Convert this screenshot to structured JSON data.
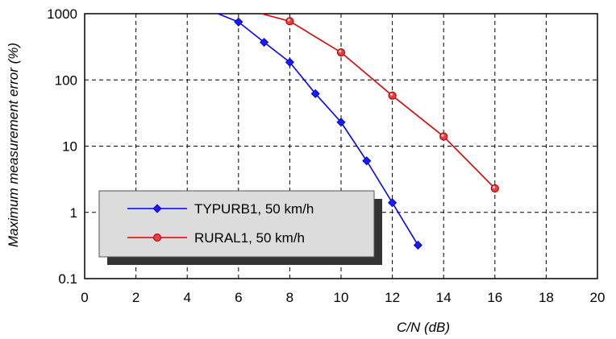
{
  "chart_data": {
    "type": "line",
    "xlabel": "C/N (dB)",
    "ylabel": "Maximum measurement error (%)",
    "xlim": [
      0,
      20
    ],
    "ylim": [
      0.1,
      1000
    ],
    "yscale": "log",
    "x_ticks": [
      "0",
      "2",
      "4",
      "6",
      "8",
      "10",
      "12",
      "14",
      "16",
      "18",
      "20"
    ],
    "y_ticks": [
      "0.1",
      "1",
      "10",
      "100",
      "1000"
    ],
    "grid": true,
    "legend_position": "bottom-left",
    "series": [
      {
        "name": "TYPURB1, 50 km/h",
        "color": "#0000ff",
        "marker": "diamond",
        "x": [
          5.2,
          6,
          7,
          8,
          9,
          10,
          11,
          12,
          13
        ],
        "y": [
          1000,
          750,
          370,
          185,
          62,
          23,
          6,
          1.4,
          0.32
        ]
      },
      {
        "name": "RURAL1, 50 km/h",
        "color": "#dd0000",
        "marker": "circle",
        "x": [
          6.9,
          8,
          10,
          12,
          14,
          16
        ],
        "y": [
          1000,
          770,
          260,
          58,
          14,
          2.3
        ]
      }
    ]
  }
}
